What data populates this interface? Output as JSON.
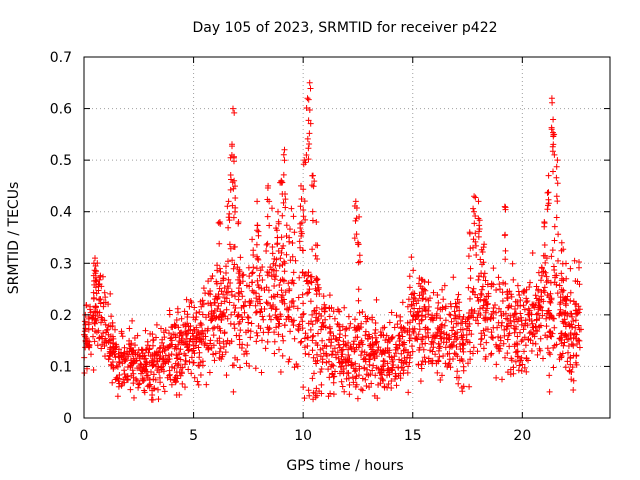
{
  "chart_data": {
    "type": "scatter",
    "title": "Day 105 of 2023, SRMTID for receiver p422",
    "xlabel": "GPS time / hours",
    "ylabel": "SRMTID / TECUs",
    "xlim": [
      0,
      24
    ],
    "ylim": [
      0,
      0.7
    ],
    "xticks": [
      0,
      5,
      10,
      15,
      20
    ],
    "xtick_labels": [
      "0",
      "5",
      "10",
      "15",
      "20"
    ],
    "yticks": [
      0,
      0.1,
      0.2,
      0.3,
      0.4,
      0.5,
      0.6,
      0.7
    ],
    "ytick_labels": [
      "0",
      "0.1",
      "0.2",
      "0.3",
      "0.4",
      "0.5",
      "0.6",
      "0.7"
    ],
    "grid": true,
    "marker": "+",
    "color": "#ff0000",
    "x_range": [
      0.0,
      22.7
    ],
    "envelope": {
      "hours": [
        0.0,
        0.4,
        0.6,
        1.0,
        1.5,
        2.0,
        3.0,
        4.0,
        5.0,
        5.8,
        6.5,
        6.8,
        7.2,
        7.8,
        8.5,
        9.2,
        9.8,
        10.3,
        10.8,
        11.5,
        12.2,
        12.6,
        13.2,
        14.0,
        14.6,
        15.0,
        15.5,
        16.0,
        16.8,
        17.4,
        17.9,
        18.5,
        19.2,
        19.8,
        20.5,
        21.0,
        21.4,
        21.8,
        22.3,
        22.7
      ],
      "typical": [
        0.15,
        0.2,
        0.22,
        0.18,
        0.1,
        0.11,
        0.1,
        0.12,
        0.15,
        0.18,
        0.2,
        0.22,
        0.2,
        0.22,
        0.25,
        0.24,
        0.25,
        0.22,
        0.15,
        0.13,
        0.12,
        0.15,
        0.13,
        0.12,
        0.13,
        0.2,
        0.18,
        0.16,
        0.16,
        0.15,
        0.25,
        0.2,
        0.18,
        0.18,
        0.2,
        0.22,
        0.22,
        0.2,
        0.18,
        0.2
      ],
      "spread": [
        0.05,
        0.06,
        0.07,
        0.06,
        0.04,
        0.05,
        0.05,
        0.05,
        0.06,
        0.07,
        0.08,
        0.12,
        0.08,
        0.08,
        0.09,
        0.1,
        0.12,
        0.12,
        0.08,
        0.06,
        0.06,
        0.08,
        0.06,
        0.05,
        0.06,
        0.08,
        0.07,
        0.06,
        0.06,
        0.07,
        0.1,
        0.07,
        0.07,
        0.07,
        0.07,
        0.08,
        0.1,
        0.08,
        0.07,
        0.06
      ]
    },
    "spikes": [
      {
        "x": 0.5,
        "y": 0.31
      },
      {
        "x": 5.8,
        "y": 0.27
      },
      {
        "x": 6.2,
        "y": 0.38
      },
      {
        "x": 6.6,
        "y": 0.42
      },
      {
        "x": 6.75,
        "y": 0.51
      },
      {
        "x": 6.8,
        "y": 0.6
      },
      {
        "x": 6.85,
        "y": 0.46
      },
      {
        "x": 7.05,
        "y": 0.38
      },
      {
        "x": 7.9,
        "y": 0.42
      },
      {
        "x": 8.4,
        "y": 0.45
      },
      {
        "x": 8.85,
        "y": 0.4
      },
      {
        "x": 9.0,
        "y": 0.46
      },
      {
        "x": 9.15,
        "y": 0.52
      },
      {
        "x": 9.9,
        "y": 0.45
      },
      {
        "x": 10.05,
        "y": 0.5
      },
      {
        "x": 10.2,
        "y": 0.62
      },
      {
        "x": 10.3,
        "y": 0.65
      },
      {
        "x": 10.45,
        "y": 0.47
      },
      {
        "x": 10.6,
        "y": 0.38
      },
      {
        "x": 12.4,
        "y": 0.42
      },
      {
        "x": 12.55,
        "y": 0.39
      },
      {
        "x": 17.6,
        "y": 0.36
      },
      {
        "x": 17.8,
        "y": 0.43
      },
      {
        "x": 18.0,
        "y": 0.42
      },
      {
        "x": 19.2,
        "y": 0.41
      },
      {
        "x": 21.0,
        "y": 0.38
      },
      {
        "x": 21.2,
        "y": 0.47
      },
      {
        "x": 21.35,
        "y": 0.62
      },
      {
        "x": 21.45,
        "y": 0.55
      },
      {
        "x": 21.6,
        "y": 0.5
      },
      {
        "x": 21.8,
        "y": 0.34
      }
    ]
  }
}
